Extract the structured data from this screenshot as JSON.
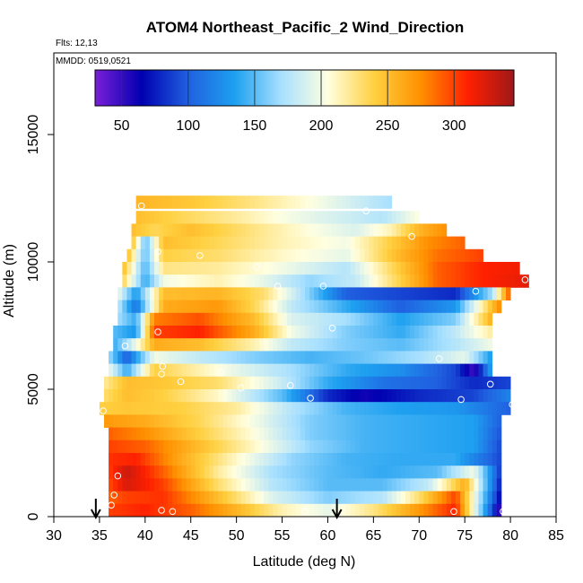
{
  "chart_data": {
    "type": "heatmap",
    "title": "ATOM4 Northeast_Pacific_2 Wind_Direction",
    "subtitle_flights": "Flts: 12,13",
    "subtitle_dates": "MMDD: 0519,0521",
    "xlabel": "Latitude (deg N)",
    "ylabel": "Altitude (m)",
    "xlim": [
      30,
      85
    ],
    "ylim": [
      0,
      17500
    ],
    "x_ticks": [
      "30",
      "35",
      "40",
      "45",
      "50",
      "55",
      "60",
      "65",
      "70",
      "75",
      "80",
      "85"
    ],
    "y_ticks": [
      "0",
      "5000",
      "10000",
      "15000"
    ],
    "colorbar": {
      "range": [
        30,
        345
      ],
      "ticks": [
        "50",
        "100",
        "150",
        "200",
        "250",
        "300"
      ],
      "tick_values": [
        50,
        100,
        150,
        200,
        250,
        300
      ],
      "colors": [
        "#7a1fd8",
        "#0000b0",
        "#2060e0",
        "#1ea0f0",
        "#a8e0ff",
        "#ffffe0",
        "#ffd040",
        "#ff9000",
        "#ff2000",
        "#a01818"
      ]
    },
    "layers": [
      {
        "alt": 12100,
        "start": 39,
        "end": 67,
        "lat": [
          39,
          45,
          52,
          58,
          63,
          67
        ],
        "dir": [
          255,
          245,
          225,
          205,
          185,
          170
        ]
      },
      {
        "alt": 11500,
        "start": 39,
        "end": 70,
        "lat": [
          39,
          44,
          50,
          56,
          62,
          66,
          70
        ],
        "dir": [
          250,
          235,
          220,
          200,
          185,
          175,
          205
        ]
      },
      {
        "alt": 11000,
        "start": 38.5,
        "end": 73,
        "lat": [
          38.5,
          41,
          45,
          52,
          58,
          63,
          67,
          70,
          73
        ],
        "dir": [
          250,
          235,
          250,
          225,
          205,
          190,
          215,
          255,
          275
        ]
      },
      {
        "alt": 10500,
        "start": 38.5,
        "end": 75,
        "lat": [
          38.5,
          40,
          42,
          48,
          55,
          62,
          68,
          71,
          75
        ],
        "dir": [
          255,
          150,
          250,
          235,
          215,
          200,
          250,
          275,
          290
        ]
      },
      {
        "alt": 10000,
        "start": 38,
        "end": 77,
        "lat": [
          38,
          40,
          42,
          48,
          55,
          62,
          68,
          72,
          77
        ],
        "dir": [
          255,
          150,
          240,
          230,
          210,
          195,
          255,
          285,
          300
        ]
      },
      {
        "alt": 9500,
        "start": 37.5,
        "end": 81,
        "lat": [
          37.5,
          40,
          42,
          48,
          55,
          62,
          68,
          72,
          77,
          81
        ],
        "dir": [
          255,
          145,
          225,
          220,
          200,
          175,
          245,
          290,
          310,
          315
        ]
      },
      {
        "alt": 9000,
        "start": 37.5,
        "end": 82,
        "lat": [
          37.5,
          40,
          42,
          48,
          53,
          58,
          63,
          68,
          72,
          77,
          82
        ],
        "dir": [
          240,
          140,
          200,
          215,
          195,
          165,
          180,
          240,
          290,
          310,
          320
        ]
      },
      {
        "alt": 8500,
        "start": 37,
        "end": 80,
        "lat": [
          37,
          39,
          42,
          48,
          53,
          57,
          62,
          68,
          74,
          78,
          80
        ],
        "dir": [
          200,
          130,
          250,
          255,
          230,
          175,
          100,
          90,
          80,
          170,
          300
        ]
      },
      {
        "alt": 8000,
        "start": 37,
        "end": 79,
        "lat": [
          37,
          39,
          42,
          48,
          52,
          56,
          62,
          68,
          74,
          79
        ],
        "dir": [
          180,
          110,
          260,
          270,
          235,
          180,
          140,
          100,
          130,
          280
        ]
      },
      {
        "alt": 7500,
        "start": 37,
        "end": 78,
        "lat": [
          37,
          39,
          41,
          46,
          52,
          56,
          62,
          68,
          74,
          78
        ],
        "dir": [
          170,
          140,
          280,
          295,
          250,
          190,
          170,
          135,
          160,
          260
        ]
      },
      {
        "alt": 7000,
        "start": 36.5,
        "end": 78,
        "lat": [
          36.5,
          39,
          41,
          46,
          52,
          56,
          62,
          68,
          74,
          78
        ],
        "dir": [
          150,
          130,
          300,
          310,
          260,
          200,
          160,
          140,
          180,
          220
        ]
      },
      {
        "alt": 6500,
        "start": 36.5,
        "end": 78,
        "lat": [
          36.5,
          38,
          41,
          46,
          52,
          56,
          62,
          68,
          74,
          78
        ],
        "dir": [
          140,
          170,
          260,
          250,
          215,
          180,
          160,
          150,
          175,
          200
        ]
      },
      {
        "alt": 6000,
        "start": 36,
        "end": 78,
        "lat": [
          36,
          38,
          41,
          46,
          52,
          58,
          64,
          70,
          75,
          78
        ],
        "dir": [
          170,
          100,
          200,
          180,
          160,
          145,
          155,
          170,
          195,
          130
        ]
      },
      {
        "alt": 5500,
        "start": 36,
        "end": 78,
        "lat": [
          36,
          38,
          41,
          44,
          50,
          56,
          62,
          68,
          74,
          76,
          78
        ],
        "dir": [
          200,
          140,
          240,
          225,
          195,
          170,
          140,
          125,
          90,
          45,
          140
        ]
      },
      {
        "alt": 5000,
        "start": 35.5,
        "end": 80,
        "lat": [
          35.5,
          38,
          42,
          48,
          54,
          60,
          66,
          72,
          76,
          80
        ],
        "dir": [
          220,
          250,
          245,
          230,
          190,
          140,
          110,
          100,
          80,
          90
        ]
      },
      {
        "alt": 4500,
        "start": 35.5,
        "end": 80,
        "lat": [
          35.5,
          38,
          42,
          48,
          55,
          60,
          64,
          70,
          76,
          80
        ],
        "dir": [
          230,
          250,
          240,
          210,
          150,
          80,
          60,
          80,
          90,
          120
        ]
      },
      {
        "alt": 4000,
        "start": 35,
        "end": 80,
        "lat": [
          35,
          38,
          44,
          50,
          56,
          62,
          68,
          74,
          80
        ],
        "dir": [
          240,
          245,
          240,
          220,
          175,
          145,
          135,
          130,
          100
        ]
      },
      {
        "alt": 3500,
        "start": 35.5,
        "end": 79,
        "lat": [
          35.5,
          40,
          46,
          52,
          58,
          64,
          70,
          76,
          79
        ],
        "dir": [
          270,
          260,
          235,
          200,
          160,
          145,
          140,
          135,
          100
        ]
      },
      {
        "alt": 3000,
        "start": 36,
        "end": 79,
        "lat": [
          36,
          40,
          46,
          52,
          58,
          64,
          70,
          76,
          79
        ],
        "dir": [
          290,
          275,
          240,
          205,
          160,
          145,
          140,
          135,
          95
        ]
      },
      {
        "alt": 2500,
        "start": 36,
        "end": 79,
        "lat": [
          36,
          40,
          46,
          52,
          58,
          64,
          70,
          76,
          79
        ],
        "dir": [
          300,
          290,
          250,
          210,
          165,
          145,
          140,
          135,
          90
        ]
      },
      {
        "alt": 2000,
        "start": 36,
        "end": 79,
        "lat": [
          36,
          39,
          44,
          50,
          56,
          62,
          68,
          74,
          79
        ],
        "dir": [
          305,
          310,
          260,
          210,
          165,
          145,
          140,
          140,
          90
        ]
      },
      {
        "alt": 1500,
        "start": 36,
        "end": 79,
        "lat": [
          36,
          38,
          42,
          48,
          54,
          60,
          66,
          72,
          76,
          79
        ],
        "dir": [
          300,
          330,
          290,
          220,
          170,
          150,
          140,
          150,
          200,
          80
        ]
      },
      {
        "alt": 1000,
        "start": 36,
        "end": 79,
        "lat": [
          36,
          38,
          42,
          48,
          54,
          60,
          66,
          71,
          75,
          79
        ],
        "dir": [
          295,
          325,
          300,
          230,
          175,
          150,
          150,
          180,
          260,
          70
        ]
      },
      {
        "alt": 500,
        "start": 36,
        "end": 79,
        "lat": [
          36,
          38,
          42,
          48,
          54,
          60,
          66,
          70,
          74,
          79
        ],
        "dir": [
          290,
          300,
          305,
          250,
          190,
          160,
          175,
          230,
          300,
          60
        ]
      },
      {
        "alt": 0,
        "start": 36,
        "end": 79,
        "lat": [
          36,
          40,
          45,
          50,
          55,
          60,
          65,
          70,
          74,
          79
        ],
        "dir": [
          300,
          310,
          290,
          255,
          215,
          195,
          225,
          270,
          310,
          40
        ]
      }
    ],
    "points": [
      {
        "lat": 39.6,
        "alt": 12200
      },
      {
        "lat": 64.2,
        "alt": 12000
      },
      {
        "lat": 69.2,
        "alt": 11000
      },
      {
        "lat": 41.4,
        "alt": 10400
      },
      {
        "lat": 46.0,
        "alt": 10250
      },
      {
        "lat": 52.2,
        "alt": 9800
      },
      {
        "lat": 81.6,
        "alt": 9300
      },
      {
        "lat": 54.5,
        "alt": 9050
      },
      {
        "lat": 59.5,
        "alt": 9050
      },
      {
        "lat": 76.2,
        "alt": 8850
      },
      {
        "lat": 60.5,
        "alt": 7400
      },
      {
        "lat": 41.4,
        "alt": 7250
      },
      {
        "lat": 37.8,
        "alt": 6700
      },
      {
        "lat": 72.2,
        "alt": 6200
      },
      {
        "lat": 41.9,
        "alt": 5900
      },
      {
        "lat": 41.8,
        "alt": 5600
      },
      {
        "lat": 48.3,
        "alt": 5650
      },
      {
        "lat": 43.9,
        "alt": 5300
      },
      {
        "lat": 77.8,
        "alt": 5200
      },
      {
        "lat": 55.9,
        "alt": 5150
      },
      {
        "lat": 50.5,
        "alt": 5050
      },
      {
        "lat": 58.1,
        "alt": 4650
      },
      {
        "lat": 74.6,
        "alt": 4600
      },
      {
        "lat": 80.2,
        "alt": 4400
      },
      {
        "lat": 35.4,
        "alt": 4150
      },
      {
        "lat": 37.0,
        "alt": 1600
      },
      {
        "lat": 36.6,
        "alt": 850
      },
      {
        "lat": 36.3,
        "alt": 450
      },
      {
        "lat": 41.8,
        "alt": 250
      },
      {
        "lat": 43.0,
        "alt": 200
      },
      {
        "lat": 57.5,
        "alt": 200
      },
      {
        "lat": 73.8,
        "alt": 200
      },
      {
        "lat": 79.2,
        "alt": 200
      }
    ],
    "arrows": [
      {
        "lat": 34.6
      },
      {
        "lat": 61.0
      }
    ]
  }
}
